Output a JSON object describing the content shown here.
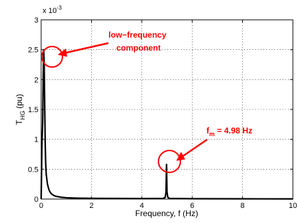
{
  "chart_data": {
    "type": "line",
    "title": "",
    "xlabel": "Frequency, f (Hz)",
    "ylabel": {
      "main": "T",
      "sub": "HG",
      "unit": "(pu)"
    },
    "xlim": [
      0,
      10
    ],
    "ylim": [
      0,
      3
    ],
    "y_multiplier": {
      "base": "x 10",
      "exponent": "-3"
    },
    "x_ticks": [
      0,
      2,
      4,
      6,
      8,
      10
    ],
    "x_tick_labels": [
      "0",
      "2",
      "4",
      "6",
      "8",
      "10"
    ],
    "y_ticks": [
      0,
      0.5,
      1,
      1.5,
      2,
      2.5,
      3
    ],
    "y_tick_labels": [
      "0",
      "0.5",
      "1",
      "1.5",
      "2",
      "2.5",
      "3"
    ],
    "grid": "dotted",
    "series": [
      {
        "color": "#000000",
        "x": [
          0.0,
          0.03,
          0.06,
          0.08,
          0.1,
          0.12,
          0.14,
          0.16,
          0.18,
          0.2,
          0.25,
          0.3,
          0.35,
          0.4,
          0.5,
          0.6,
          0.8,
          1.0,
          1.5,
          2.0,
          3.0,
          4.0,
          4.85,
          4.93,
          4.96,
          4.98,
          5.0,
          5.03,
          5.1,
          6.0,
          8.0,
          10.0
        ],
        "y": [
          0.0,
          0.0009,
          0.0013,
          0.002,
          0.0025,
          0.0023,
          0.0016,
          0.00095,
          0.0006,
          0.00042,
          0.00025,
          0.00017,
          0.00012,
          9e-05,
          6e-05,
          4.5e-05,
          3e-05,
          2.2e-05,
          1.5e-05,
          1.2e-05,
          1e-05,
          8e-06,
          1e-05,
          3e-05,
          0.00012,
          0.00058,
          0.00012,
          3e-05,
          1e-05,
          6e-06,
          4e-06,
          3e-06
        ]
      }
    ],
    "annotations": [
      {
        "lines": [
          "low−frequency",
          "component"
        ],
        "circle_at": [
          0.12,
          0.00245
        ]
      },
      {
        "base": "f",
        "sub": "m",
        "rest": " = 4.98 Hz",
        "circle_at": [
          4.98,
          0.00058
        ]
      }
    ]
  }
}
